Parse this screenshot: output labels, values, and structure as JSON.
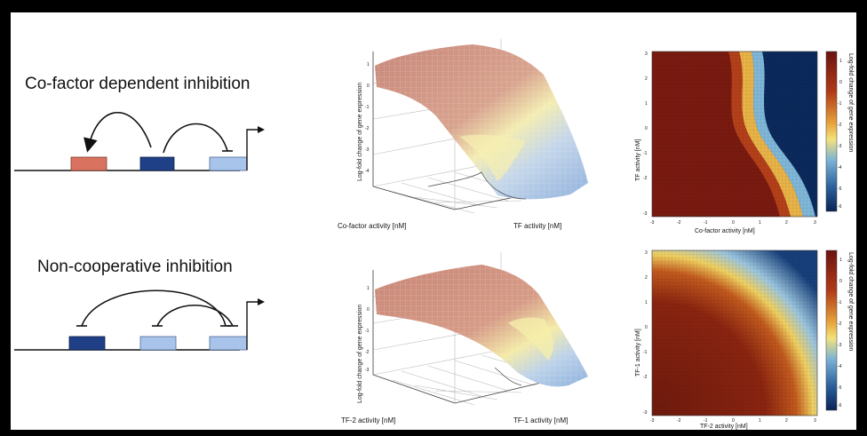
{
  "panels": [
    {
      "title": "Co-factor dependent inhibition",
      "surface": {
        "zlabel": "Log-fold change of gene expression",
        "xlabel": "Co-factor activity  [nM]",
        "ylabel": "TF activity  [nM]"
      },
      "heatmap": {
        "xlabel": "Co-factor activity  [nM]",
        "ylabel": "TF activity  [nM]",
        "colorbar_label": "Log-fold change of gene expression"
      }
    },
    {
      "title": "Non-cooperative inhibition",
      "surface": {
        "zlabel": "Log-fold change of gene expression",
        "xlabel": "TF-2 activity  [nM]",
        "ylabel": "TF-1 activity  [nM]"
      },
      "heatmap": {
        "xlabel": "TF-2 activity  [nM]",
        "ylabel": "TF-1 activity  [nM]",
        "colorbar_label": "Log-fold change of gene expression"
      }
    }
  ],
  "colors": {
    "red_box": "#d9735f",
    "dark_blue_box": "#1f3f86",
    "light_blue_box": "#a9c4ea",
    "hot": "#7a1a10",
    "cold": "#0b2a5c"
  }
}
